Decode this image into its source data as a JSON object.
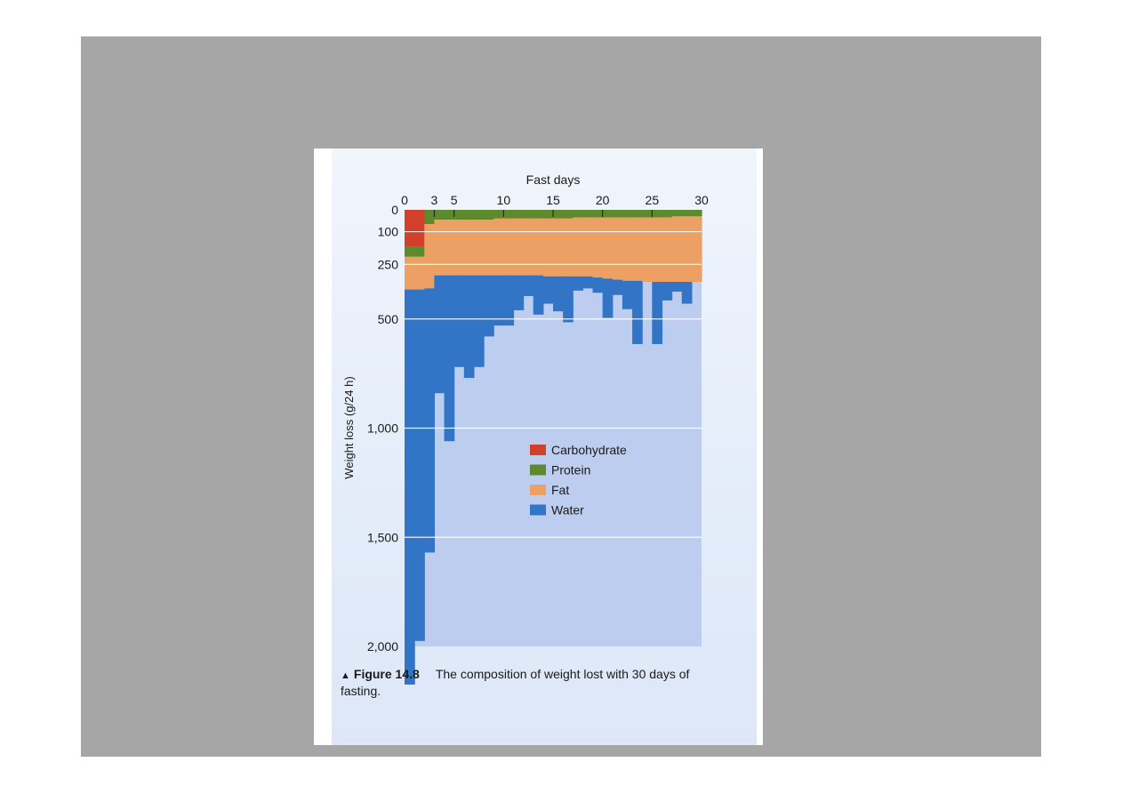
{
  "figure": {
    "marker": "▲",
    "label": "Figure 14.8",
    "caption": "The composition of weight lost with 30 days of fasting."
  },
  "chart_data": {
    "type": "area",
    "title": "",
    "xlabel": "Fast days",
    "ylabel": "Weight loss (g/24 h)",
    "xlim": [
      0,
      30
    ],
    "ylim": [
      0,
      2000
    ],
    "x_ticks": [
      "0",
      "3",
      "5",
      "10",
      "15",
      "20",
      "25",
      "30"
    ],
    "y_ticks": [
      "0",
      "100",
      "250",
      "500",
      "1,000",
      "1,500",
      "2,000"
    ],
    "grid": true,
    "legend_position": "center-right",
    "colors": {
      "Carbohydrate": "#d1402a",
      "Protein": "#5d8a2c",
      "Fat": "#eda064",
      "Water": "#3274c6"
    },
    "days": [
      1,
      2,
      3,
      4,
      5,
      6,
      7,
      8,
      9,
      10,
      11,
      12,
      13,
      14,
      15,
      16,
      17,
      18,
      19,
      20,
      21,
      22,
      23,
      24,
      25,
      26,
      27,
      28,
      29,
      30
    ],
    "series": [
      {
        "name": "Carbohydrate",
        "values": [
          170,
          170,
          0,
          0,
          0,
          0,
          0,
          0,
          0,
          0,
          0,
          0,
          0,
          0,
          0,
          0,
          0,
          0,
          0,
          0,
          0,
          0,
          0,
          0,
          0,
          0,
          0,
          0,
          0,
          0
        ]
      },
      {
        "name": "Protein",
        "values": [
          45,
          45,
          65,
          45,
          45,
          45,
          45,
          45,
          45,
          40,
          40,
          40,
          40,
          40,
          40,
          40,
          40,
          35,
          35,
          35,
          35,
          35,
          35,
          35,
          35,
          35,
          35,
          30,
          30,
          30
        ]
      },
      {
        "name": "Fat",
        "values": [
          150,
          150,
          295,
          255,
          255,
          255,
          255,
          255,
          255,
          260,
          260,
          260,
          260,
          260,
          265,
          265,
          265,
          270,
          270,
          275,
          280,
          285,
          290,
          290,
          295,
          295,
          295,
          300,
          300,
          300
        ]
      },
      {
        "name": "Water",
        "values": [
          1810,
          1610,
          1210,
          540,
          760,
          420,
          470,
          420,
          280,
          230,
          230,
          160,
          95,
          180,
          125,
          160,
          210,
          65,
          55,
          70,
          180,
          70,
          130,
          290,
          0,
          285,
          85,
          45,
          100,
          0
        ]
      }
    ],
    "legend": [
      "Carbohydrate",
      "Protein",
      "Fat",
      "Water"
    ]
  }
}
